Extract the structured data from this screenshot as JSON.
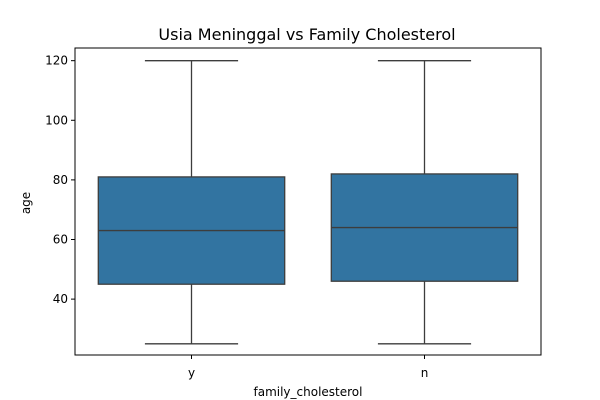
{
  "chart_data": {
    "type": "box",
    "title": "Usia Meninggal vs Family Cholesterol",
    "xlabel": "family_cholesterol",
    "ylabel": "age",
    "categories": [
      "y",
      "n"
    ],
    "boxes": [
      {
        "category": "y",
        "whisker_low": 25,
        "q1": 45,
        "median": 63,
        "q3": 81,
        "whisker_high": 120
      },
      {
        "category": "n",
        "whisker_low": 25,
        "q1": 46,
        "median": 64,
        "q3": 82,
        "whisker_high": 120
      }
    ],
    "ylim": [
      21.25,
      124.25
    ],
    "yticks": [
      40,
      60,
      80,
      100,
      120
    ],
    "grid": false,
    "colors": {
      "box_fill": "#3274a1",
      "line": "#3d3d3d"
    }
  }
}
